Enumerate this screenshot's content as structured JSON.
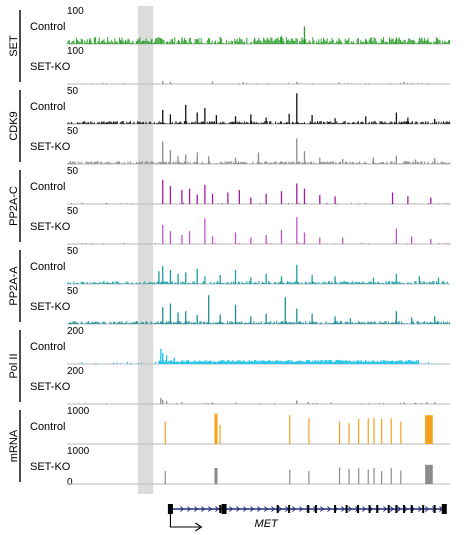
{
  "chart_data": {
    "type": "genome-browser-tracks",
    "highlight_color": "#dcdcdc",
    "groups": [
      {
        "name": "SET",
        "tracks": [
          {
            "label": "Control",
            "scale": "100",
            "color": "#2ca02c",
            "max": 100,
            "peaks": [
              [
                0.06,
                18
              ],
              [
                0.14,
                12
              ],
              [
                0.22,
                14
              ],
              [
                0.3,
                16
              ],
              [
                0.4,
                22
              ],
              [
                0.49,
                19
              ],
              [
                0.56,
                25
              ],
              [
                0.62,
                55
              ],
              [
                0.71,
                18
              ],
              [
                0.78,
                14
              ],
              [
                0.86,
                20
              ],
              [
                0.94,
                12
              ]
            ],
            "noise": 7,
            "dense": true
          },
          {
            "label": "SET-KO",
            "scale": "100",
            "color": "#8c8c8c",
            "max": 100,
            "peaks": [
              [
                0.25,
                9
              ],
              [
                0.27,
                7
              ],
              [
                0.38,
                8
              ],
              [
                0.46,
                6
              ],
              [
                0.6,
                7
              ],
              [
                0.71,
                5
              ],
              [
                0.88,
                6
              ]
            ],
            "noise": 2,
            "dense": false
          }
        ]
      },
      {
        "name": "CDK9",
        "tracks": [
          {
            "label": "Control",
            "scale": "50",
            "color": "#111111",
            "max": 50,
            "peaks": [
              [
                0.25,
                22
              ],
              [
                0.27,
                15
              ],
              [
                0.31,
                30
              ],
              [
                0.34,
                18
              ],
              [
                0.36,
                25
              ],
              [
                0.39,
                14
              ],
              [
                0.44,
                12
              ],
              [
                0.48,
                15
              ],
              [
                0.52,
                10
              ],
              [
                0.58,
                16
              ],
              [
                0.6,
                48
              ],
              [
                0.64,
                14
              ],
              [
                0.7,
                9
              ],
              [
                0.78,
                12
              ],
              [
                0.86,
                18
              ],
              [
                0.89,
                10
              ],
              [
                0.96,
                8
              ]
            ],
            "noise": 3,
            "dense": true
          },
          {
            "label": "SET-KO",
            "scale": "50",
            "color": "#8c8c8c",
            "max": 50,
            "peaks": [
              [
                0.25,
                35
              ],
              [
                0.27,
                22
              ],
              [
                0.29,
                12
              ],
              [
                0.31,
                15
              ],
              [
                0.34,
                18
              ],
              [
                0.37,
                12
              ],
              [
                0.44,
                10
              ],
              [
                0.5,
                18
              ],
              [
                0.6,
                40
              ],
              [
                0.62,
                20
              ],
              [
                0.66,
                10
              ],
              [
                0.72,
                8
              ],
              [
                0.8,
                10
              ],
              [
                0.86,
                13
              ],
              [
                0.91,
                7
              ],
              [
                0.96,
                9
              ]
            ],
            "noise": 3,
            "dense": true
          }
        ]
      },
      {
        "name": "PP2A-C",
        "tracks": [
          {
            "label": "Control",
            "scale": "50",
            "color": "#a21a9e",
            "max": 50,
            "peaks": [
              [
                0.25,
                38
              ],
              [
                0.27,
                28
              ],
              [
                0.3,
                22
              ],
              [
                0.32,
                24
              ],
              [
                0.34,
                15
              ],
              [
                0.36,
                30
              ],
              [
                0.38,
                16
              ],
              [
                0.42,
                18
              ],
              [
                0.45,
                22
              ],
              [
                0.48,
                10
              ],
              [
                0.52,
                16
              ],
              [
                0.56,
                20
              ],
              [
                0.6,
                32
              ],
              [
                0.62,
                24
              ],
              [
                0.66,
                14
              ],
              [
                0.7,
                12
              ],
              [
                0.85,
                18
              ],
              [
                0.89,
                12
              ],
              [
                0.95,
                10
              ]
            ],
            "noise": 2,
            "dense": false
          },
          {
            "label": "SET-KO",
            "scale": "50",
            "color": "#c254c8",
            "max": 50,
            "peaks": [
              [
                0.25,
                30
              ],
              [
                0.27,
                20
              ],
              [
                0.3,
                14
              ],
              [
                0.32,
                20
              ],
              [
                0.36,
                40
              ],
              [
                0.38,
                12
              ],
              [
                0.44,
                18
              ],
              [
                0.48,
                10
              ],
              [
                0.52,
                14
              ],
              [
                0.56,
                22
              ],
              [
                0.6,
                42
              ],
              [
                0.62,
                18
              ],
              [
                0.66,
                10
              ],
              [
                0.72,
                10
              ],
              [
                0.86,
                24
              ],
              [
                0.9,
                12
              ],
              [
                0.95,
                8
              ]
            ],
            "noise": 2,
            "dense": false
          }
        ]
      },
      {
        "name": "PP2A-A",
        "tracks": [
          {
            "label": "Control",
            "scale": "50",
            "color": "#1a9fa5",
            "max": 50,
            "peaks": [
              [
                0.24,
                20
              ],
              [
                0.25,
                28
              ],
              [
                0.27,
                22
              ],
              [
                0.29,
                16
              ],
              [
                0.31,
                18
              ],
              [
                0.34,
                24
              ],
              [
                0.36,
                12
              ],
              [
                0.4,
                14
              ],
              [
                0.44,
                22
              ],
              [
                0.48,
                10
              ],
              [
                0.52,
                16
              ],
              [
                0.56,
                12
              ],
              [
                0.6,
                30
              ],
              [
                0.64,
                14
              ],
              [
                0.7,
                12
              ],
              [
                0.8,
                10
              ],
              [
                0.86,
                16
              ],
              [
                0.92,
                12
              ],
              [
                0.97,
                10
              ]
            ],
            "noise": 3,
            "dense": true
          },
          {
            "label": "SET-KO",
            "scale": "50",
            "color": "#1a8f95",
            "max": 50,
            "peaks": [
              [
                0.25,
                26
              ],
              [
                0.27,
                32
              ],
              [
                0.29,
                18
              ],
              [
                0.31,
                20
              ],
              [
                0.34,
                14
              ],
              [
                0.37,
                45
              ],
              [
                0.4,
                15
              ],
              [
                0.44,
                30
              ],
              [
                0.48,
                12
              ],
              [
                0.52,
                16
              ],
              [
                0.57,
                42
              ],
              [
                0.6,
                24
              ],
              [
                0.64,
                16
              ],
              [
                0.7,
                12
              ],
              [
                0.74,
                9
              ],
              [
                0.86,
                20
              ],
              [
                0.9,
                10
              ],
              [
                0.96,
                12
              ]
            ],
            "noise": 3,
            "dense": true
          }
        ]
      },
      {
        "name": "Pol II",
        "tracks": [
          {
            "label": "Control",
            "scale": "200",
            "color": "#1ec3ea",
            "max": 200,
            "peaks": [
              [
                0.245,
                95
              ],
              [
                0.25,
                70
              ],
              [
                0.26,
                55
              ],
              [
                0.28,
                40
              ]
            ],
            "noise": 4,
            "dense": false,
            "plateau": [
              0.24,
              0.92,
              22
            ]
          },
          {
            "label": "SET-KO",
            "scale": "200",
            "color": "#8c8c8c",
            "max": 200,
            "peaks": [
              [
                0.245,
                38
              ],
              [
                0.25,
                26
              ],
              [
                0.26,
                18
              ],
              [
                0.3,
                12
              ],
              [
                0.38,
                8
              ],
              [
                0.44,
                8
              ],
              [
                0.6,
                22
              ],
              [
                0.63,
                12
              ],
              [
                0.69,
                10
              ],
              [
                0.88,
                10
              ],
              [
                0.91,
                8
              ],
              [
                0.94,
                12
              ],
              [
                0.96,
                10
              ]
            ],
            "noise": 2,
            "dense": false
          }
        ]
      },
      {
        "name": "mRNA",
        "tracks": [
          {
            "label": "Control",
            "scale": "1000",
            "color": "#f5a11e",
            "max": 1000,
            "blocks": [
              [
                0.255,
                0.258,
                700
              ],
              [
                0.385,
                0.393,
                950
              ],
              [
                0.398,
                0.4,
                600
              ],
              [
                0.58,
                0.582,
                900
              ],
              [
                0.63,
                0.632,
                800
              ],
              [
                0.71,
                0.713,
                700
              ],
              [
                0.735,
                0.737,
                650
              ],
              [
                0.76,
                0.763,
                780
              ],
              [
                0.785,
                0.787,
                800
              ],
              [
                0.8,
                0.803,
                820
              ],
              [
                0.82,
                0.822,
                780
              ],
              [
                0.845,
                0.848,
                800
              ],
              [
                0.87,
                0.872,
                700
              ],
              [
                0.935,
                0.955,
                900
              ]
            ],
            "noise": 0,
            "dense": false
          },
          {
            "label": "SET-KO",
            "scale": "1000",
            "scale2": "0",
            "color": "#8c8c8c",
            "max": 1000,
            "blocks": [
              [
                0.255,
                0.258,
                400
              ],
              [
                0.385,
                0.393,
                500
              ],
              [
                0.58,
                0.582,
                450
              ],
              [
                0.63,
                0.632,
                400
              ],
              [
                0.71,
                0.713,
                520
              ],
              [
                0.735,
                0.737,
                480
              ],
              [
                0.76,
                0.763,
                500
              ],
              [
                0.785,
                0.787,
                450
              ],
              [
                0.8,
                0.803,
                500
              ],
              [
                0.82,
                0.822,
                400
              ],
              [
                0.845,
                0.848,
                500
              ],
              [
                0.87,
                0.872,
                420
              ],
              [
                0.935,
                0.955,
                600
              ]
            ],
            "noise": 0,
            "dense": false
          }
        ]
      }
    ],
    "gene": {
      "name": "MET",
      "start": 0.27,
      "end": 0.985,
      "exons": [
        0.27,
        0.4,
        0.41,
        0.55,
        0.58,
        0.63,
        0.65,
        0.7,
        0.73,
        0.76,
        0.79,
        0.81,
        0.84,
        0.86,
        0.88,
        0.9,
        0.93,
        0.96,
        0.985
      ]
    }
  }
}
